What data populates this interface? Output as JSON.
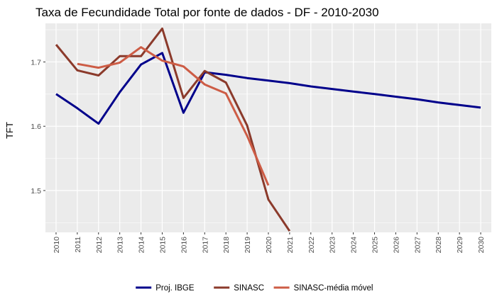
{
  "chart_data": {
    "type": "line",
    "title": "Taxa de Fecundidade Total por fonte de dados - DF - 2010-2030",
    "xlabel": "",
    "ylabel": "TFT",
    "xlim": [
      2009.5,
      2030.5
    ],
    "ylim": [
      1.435,
      1.76
    ],
    "x_ticks": [
      2010,
      2011,
      2012,
      2013,
      2014,
      2015,
      2016,
      2017,
      2018,
      2019,
      2020,
      2021,
      2022,
      2023,
      2024,
      2025,
      2026,
      2027,
      2028,
      2029,
      2030
    ],
    "y_ticks": [
      1.5,
      1.6,
      1.7
    ],
    "y_tick_labels": [
      "1.5",
      "1.6",
      "1.7"
    ],
    "grid": true,
    "legend_position": "bottom",
    "series": [
      {
        "name": "Proj. IBGE",
        "color": "#00008B",
        "points": [
          [
            2010,
            1.65
          ],
          [
            2011,
            1.628
          ],
          [
            2012,
            1.604
          ],
          [
            2013,
            1.653
          ],
          [
            2014,
            1.696
          ],
          [
            2015,
            1.714
          ],
          [
            2016,
            1.621
          ],
          [
            2017,
            1.684
          ],
          [
            2018,
            1.68
          ],
          [
            2019,
            1.675
          ],
          [
            2020,
            1.671
          ],
          [
            2021,
            1.667
          ],
          [
            2022,
            1.662
          ],
          [
            2023,
            1.658
          ],
          [
            2024,
            1.654
          ],
          [
            2025,
            1.65
          ],
          [
            2026,
            1.646
          ],
          [
            2027,
            1.642
          ],
          [
            2028,
            1.637
          ],
          [
            2029,
            1.633
          ],
          [
            2030,
            1.629
          ]
        ]
      },
      {
        "name": "SINASC",
        "color": "#8B3A2B",
        "points": [
          [
            2010,
            1.727
          ],
          [
            2011,
            1.687
          ],
          [
            2012,
            1.679
          ],
          [
            2013,
            1.709
          ],
          [
            2014,
            1.709
          ],
          [
            2015,
            1.752
          ],
          [
            2016,
            1.644
          ],
          [
            2017,
            1.686
          ],
          [
            2018,
            1.668
          ],
          [
            2019,
            1.601
          ],
          [
            2020,
            1.486
          ],
          [
            2021,
            1.437
          ]
        ]
      },
      {
        "name": "SINASC-média móvel",
        "color": "#CD5C45",
        "points": [
          [
            2011,
            1.697
          ],
          [
            2012,
            1.691
          ],
          [
            2013,
            1.699
          ],
          [
            2014,
            1.723
          ],
          [
            2015,
            1.702
          ],
          [
            2016,
            1.693
          ],
          [
            2017,
            1.665
          ],
          [
            2018,
            1.651
          ],
          [
            2019,
            1.585
          ],
          [
            2020,
            1.508
          ]
        ]
      }
    ]
  }
}
